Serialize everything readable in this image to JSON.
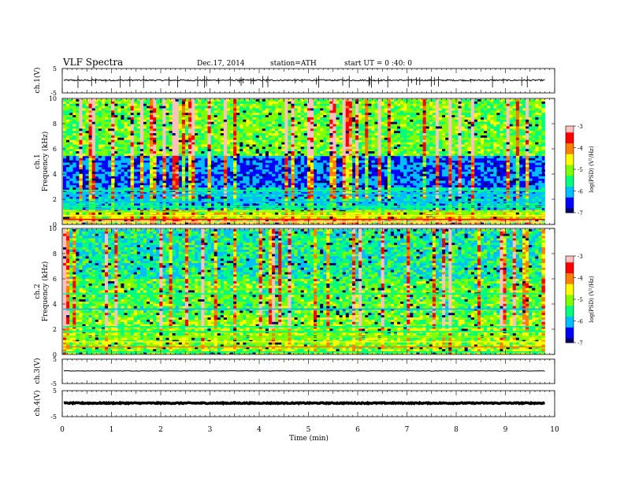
{
  "header": {
    "title": "VLF  Spectra",
    "date": "Dec.17, 2014",
    "station": "station=ATH",
    "start": "start  UT  =   0 :40: 0"
  },
  "chart_data": [
    {
      "type": "line",
      "name": "ch1-waveform",
      "ylabel": "ch.1(V)",
      "ylim": [
        -5,
        5
      ],
      "yticks": [
        "5",
        "-5"
      ],
      "xlim": [
        0,
        10
      ],
      "level": 0.2,
      "noise_amplitude": 0.3,
      "spike_count": 45
    },
    {
      "type": "heatmap",
      "name": "ch1-spectrogram",
      "ylabel": "ch.1\nFrequency  (kHz)",
      "ylim": [
        0,
        10
      ],
      "yticks": [
        "0",
        "2",
        "4",
        "6",
        "8",
        "10"
      ],
      "xlim": [
        0,
        9.8
      ],
      "colorbar": {
        "label": "log(PSD) (V²/Hz)",
        "range": [
          -7,
          -3
        ],
        "ticks": [
          "-3",
          "-4",
          "-5",
          "-6",
          "-7"
        ]
      }
    },
    {
      "type": "heatmap",
      "name": "ch2-spectrogram",
      "ylabel": "ch.2\nFrequency  (kHz)",
      "ylim": [
        0,
        10
      ],
      "yticks": [
        "0",
        "2",
        "4",
        "6",
        "8",
        "10"
      ],
      "xlim": [
        0,
        9.8
      ],
      "colorbar": {
        "label": "log(PSD) (V²/Hz)",
        "range": [
          -7,
          -3
        ],
        "ticks": [
          "-3",
          "-4",
          "-5",
          "-6",
          "-7"
        ]
      }
    },
    {
      "type": "line",
      "name": "ch3-waveform",
      "ylabel": "ch.3(V)",
      "ylim": [
        -5,
        5
      ],
      "yticks": [
        "5",
        "-5"
      ],
      "xlim": [
        0,
        10
      ],
      "level": 0.2,
      "noise_amplitude": 0.1
    },
    {
      "type": "line",
      "name": "ch4-waveform",
      "ylabel": "ch.4(V)",
      "ylim": [
        -5,
        5
      ],
      "yticks": [
        "5",
        "-5"
      ],
      "xlim": [
        0,
        10
      ],
      "level": 0.2,
      "noise_amplitude": 0.2
    }
  ],
  "xaxis": {
    "label": "Time  (min)",
    "ticks": [
      "0",
      "1",
      "2",
      "3",
      "4",
      "5",
      "6",
      "7",
      "8",
      "9",
      "10"
    ]
  },
  "colors": {
    "colormap": [
      "#00006a",
      "#0000ff",
      "#00bfff",
      "#00ff7f",
      "#7fff00",
      "#ffff00",
      "#ff8000",
      "#ff0000",
      "#ffc0c0"
    ]
  }
}
